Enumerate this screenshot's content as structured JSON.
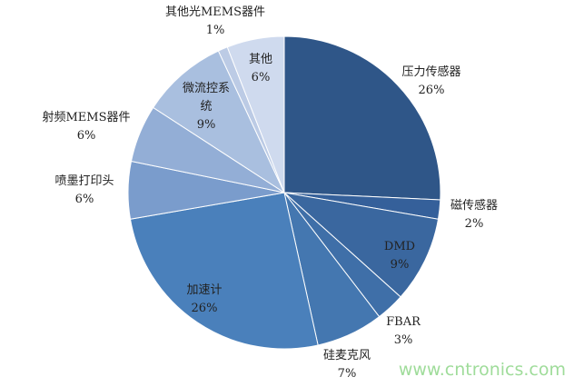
{
  "chart_data": {
    "type": "pie",
    "start": "top",
    "direction": "clockwise",
    "slices": [
      {
        "label": "压力传感器",
        "value": 26,
        "display": "26%",
        "color": "#2f5688"
      },
      {
        "label": "磁传感器",
        "value": 2,
        "display": "2%",
        "color": "#35609a"
      },
      {
        "label": "DMD",
        "value": 9,
        "display": "9%",
        "color": "#3a679f"
      },
      {
        "label": "FBAR",
        "value": 3,
        "display": "3%",
        "color": "#3f6fa8"
      },
      {
        "label": "硅麦克风",
        "value": 7,
        "display": "7%",
        "color": "#4477b0"
      },
      {
        "label": "加速计",
        "value": 26,
        "display": "26%",
        "color": "#4a80bb"
      },
      {
        "label": "喷墨打印头",
        "value": 6,
        "display": "6%",
        "color": "#7a9ccc"
      },
      {
        "label": "射频MEMS器件",
        "value": 6,
        "display": "6%",
        "color": "#93aed6"
      },
      {
        "label": "微流控系统",
        "value": 9,
        "display": "9%",
        "color": "#a9bfdf"
      },
      {
        "label": "其他光MEMS器件",
        "value": 1,
        "display": "1%",
        "color": "#bccbe5"
      },
      {
        "label": "其他",
        "value": 6,
        "display": "6%",
        "color": "#cfdaee"
      }
    ]
  },
  "watermark": "www.cntronics.com"
}
